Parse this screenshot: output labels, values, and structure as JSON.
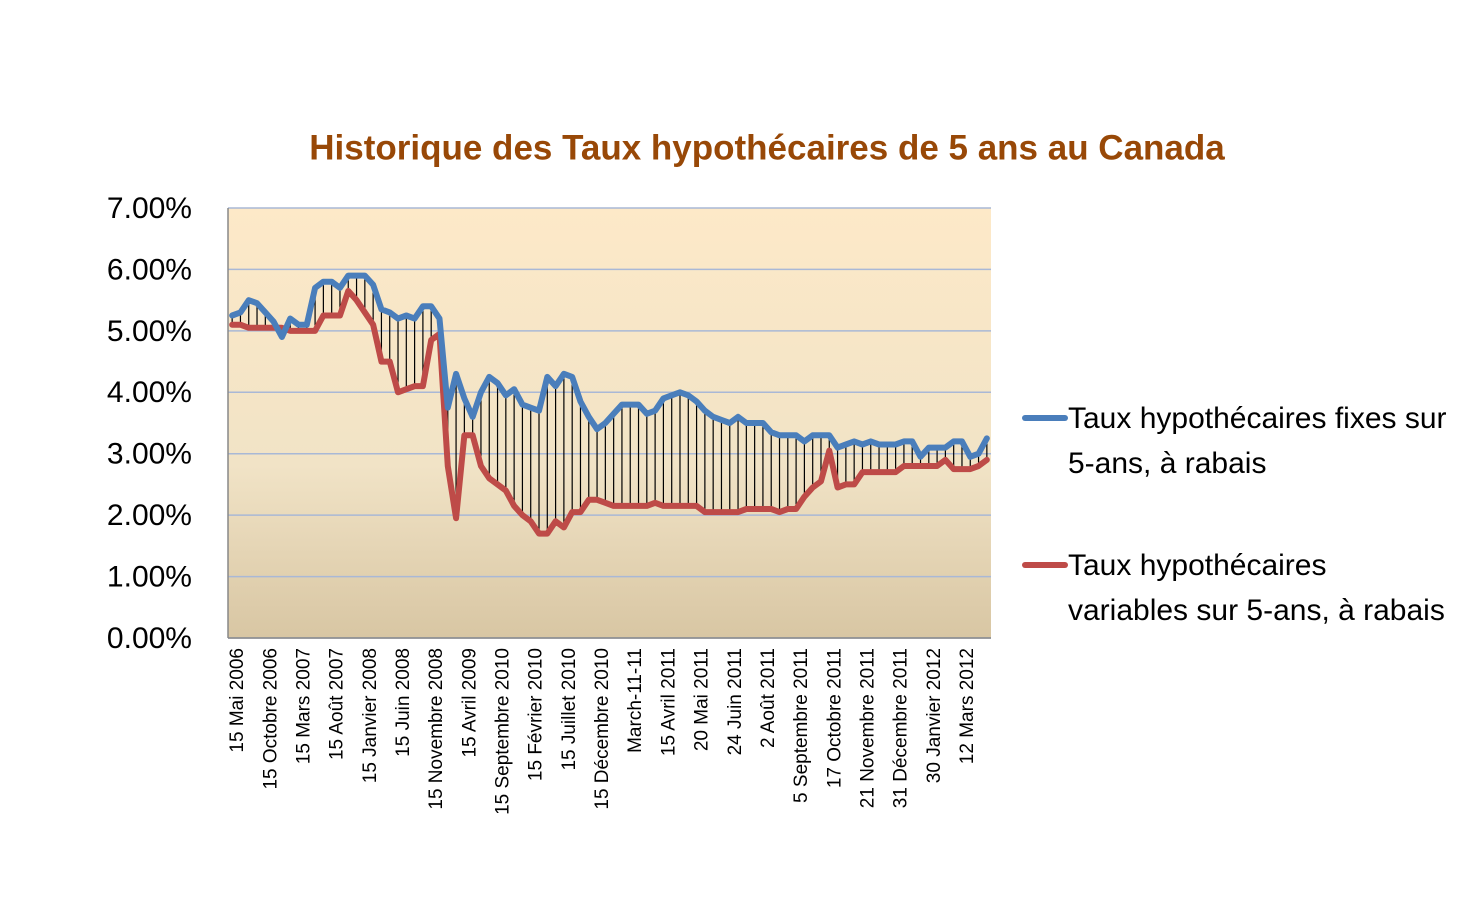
{
  "chart_data": {
    "type": "line",
    "title": "Historique des Taux hypothécaires de 5 ans au Canada",
    "categories": [
      "15 Mai 2006",
      null,
      null,
      null,
      "15 Octobre 2006",
      null,
      null,
      null,
      "15 Mars 2007",
      null,
      null,
      null,
      "15 Août 2007",
      null,
      null,
      null,
      "15 Janvier 2008",
      null,
      null,
      null,
      "15 Juin 2008",
      null,
      null,
      null,
      "15 Novembre 2008",
      null,
      null,
      null,
      "15 Avril 2009",
      null,
      null,
      null,
      "15 Septembre 2010",
      null,
      null,
      null,
      "15 Février 2010",
      null,
      null,
      null,
      "15 Juillet 2010",
      null,
      null,
      null,
      "15 Décembre 2010",
      null,
      null,
      null,
      "March-11-11",
      null,
      null,
      null,
      "15 Avril 2011",
      null,
      null,
      null,
      "20 Mai 2011",
      null,
      null,
      null,
      "24 Juin 2011",
      null,
      null,
      null,
      "2 Août 2011",
      null,
      null,
      null,
      "5 Septembre 2011",
      null,
      null,
      null,
      "17 Octobre 2011",
      null,
      null,
      null,
      "21 Novembre 2011",
      null,
      null,
      null,
      "31 Décembre 2011",
      null,
      null,
      null,
      "30 Janvier 2012",
      null,
      null,
      null,
      "12 Mars 2012",
      null,
      null,
      null
    ],
    "series": [
      {
        "name": "Taux hypothécaires fixes sur 5-ans, à rabais",
        "color": "#4a7ebb",
        "values": [
          5.25,
          5.3,
          5.5,
          5.45,
          5.3,
          5.15,
          4.9,
          5.2,
          5.1,
          5.1,
          5.7,
          5.8,
          5.8,
          5.7,
          5.9,
          5.9,
          5.9,
          5.75,
          5.35,
          5.3,
          5.2,
          5.25,
          5.2,
          5.4,
          5.4,
          5.2,
          3.75,
          4.3,
          3.9,
          3.6,
          4.0,
          4.25,
          4.15,
          3.95,
          4.05,
          3.8,
          3.75,
          3.7,
          4.25,
          4.1,
          4.3,
          4.25,
          3.85,
          3.6,
          3.4,
          3.5,
          3.65,
          3.8,
          3.8,
          3.8,
          3.65,
          3.7,
          3.9,
          3.95,
          4.0,
          3.95,
          3.85,
          3.7,
          3.6,
          3.55,
          3.5,
          3.6,
          3.5,
          3.5,
          3.5,
          3.35,
          3.3,
          3.3,
          3.3,
          3.2,
          3.3,
          3.3,
          3.3,
          3.1,
          3.15,
          3.2,
          3.15,
          3.2,
          3.15,
          3.15,
          3.15,
          3.2,
          3.2,
          2.95,
          3.1,
          3.1,
          3.1,
          3.2,
          3.2,
          2.95,
          3.0,
          3.25
        ]
      },
      {
        "name": "Taux hypothécaires variables sur 5-ans, à rabais",
        "color": "#be4b48",
        "values": [
          5.1,
          5.1,
          5.05,
          5.05,
          5.05,
          5.05,
          5.05,
          5.0,
          5.0,
          5.0,
          5.0,
          5.25,
          5.25,
          5.25,
          5.65,
          5.5,
          5.3,
          5.1,
          4.5,
          4.5,
          4.0,
          4.05,
          4.1,
          4.1,
          4.85,
          4.95,
          2.8,
          1.95,
          3.3,
          3.3,
          2.8,
          2.6,
          2.5,
          2.4,
          2.15,
          2.0,
          1.9,
          1.7,
          1.7,
          1.9,
          1.8,
          2.05,
          2.05,
          2.25,
          2.25,
          2.2,
          2.15,
          2.15,
          2.15,
          2.15,
          2.15,
          2.2,
          2.15,
          2.15,
          2.15,
          2.15,
          2.15,
          2.05,
          2.05,
          2.05,
          2.05,
          2.05,
          2.1,
          2.1,
          2.1,
          2.1,
          2.05,
          2.1,
          2.1,
          2.3,
          2.45,
          2.55,
          3.05,
          2.45,
          2.5,
          2.5,
          2.7,
          2.7,
          2.7,
          2.7,
          2.7,
          2.8,
          2.8,
          2.8,
          2.8,
          2.8,
          2.9,
          2.75,
          2.75,
          2.75,
          2.8,
          2.9
        ]
      }
    ],
    "ylim": [
      0,
      7
    ],
    "yticks": [
      {
        "value": 0,
        "label": "0.00%"
      },
      {
        "value": 1,
        "label": "1.00%"
      },
      {
        "value": 2,
        "label": "2.00%"
      },
      {
        "value": 3,
        "label": "3.00%"
      },
      {
        "value": 4,
        "label": "4.00%"
      },
      {
        "value": 5,
        "label": "5.00%"
      },
      {
        "value": 6,
        "label": "6.00%"
      },
      {
        "value": 7,
        "label": "7.00%"
      }
    ],
    "grid": true,
    "high_low_lines": true,
    "legend": "right"
  }
}
